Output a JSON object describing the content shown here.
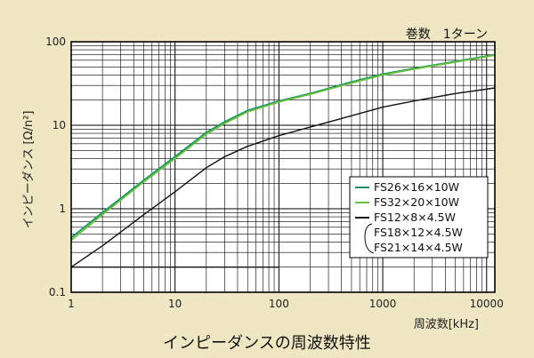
{
  "chart_data": {
    "type": "line",
    "title": "インピーダンスの周波数特性",
    "turns_note": "巻数　1ターン",
    "xlabel": "周波数[kHz]",
    "ylabel": "インピーダンス [Ω/n²]",
    "x_scale": "log",
    "y_scale": "log",
    "xlim": [
      1,
      12000
    ],
    "ylim": [
      0.1,
      100
    ],
    "x_ticks": [
      1,
      10,
      100,
      1000,
      10000
    ],
    "x_tick_labels": [
      "1",
      "10",
      "100",
      "1000",
      "10000"
    ],
    "y_ticks": [
      0.1,
      1,
      10,
      100
    ],
    "y_tick_labels": [
      "0.1",
      "1",
      "10",
      "100"
    ],
    "grid": true,
    "legend_position": "lower-right",
    "series": [
      {
        "name": "FS26×16×10W",
        "color": "#1b8f6a",
        "x": [
          1,
          2,
          5,
          10,
          20,
          30,
          50,
          100,
          200,
          500,
          1000,
          2000,
          5000,
          12000
        ],
        "y": [
          0.45,
          0.9,
          2.2,
          4.2,
          8.2,
          11,
          15,
          19.5,
          24,
          33,
          41,
          48,
          58,
          70
        ]
      },
      {
        "name": "FS32×20×10W",
        "color": "#66c23e",
        "x": [
          1,
          2,
          5,
          10,
          20,
          30,
          50,
          100,
          200,
          500,
          1000,
          2000,
          5000,
          12000
        ],
        "y": [
          0.42,
          0.85,
          2.1,
          4.0,
          7.8,
          10.5,
          14.5,
          19.0,
          23.5,
          32,
          40,
          47,
          57,
          69
        ]
      },
      {
        "name": "FS12×8×4.5W",
        "color": "#111111",
        "x": [
          1,
          2,
          5,
          10,
          20,
          30,
          50,
          100,
          200,
          500,
          1000,
          2000,
          5000,
          12000
        ],
        "y": [
          0.2,
          0.36,
          0.85,
          1.6,
          3.1,
          4.2,
          5.6,
          7.5,
          9.5,
          13,
          16.5,
          19.5,
          24,
          28
        ]
      }
    ],
    "legend_group": {
      "color": "#111111",
      "entries": [
        "FS12×8×4.5W",
        "FS18×12×4.5W",
        "FS21×14×4.5W"
      ]
    },
    "reference_line": {
      "x": [
        1,
        100
      ],
      "y": [
        0.2,
        0.2
      ],
      "color": "#111111"
    }
  }
}
